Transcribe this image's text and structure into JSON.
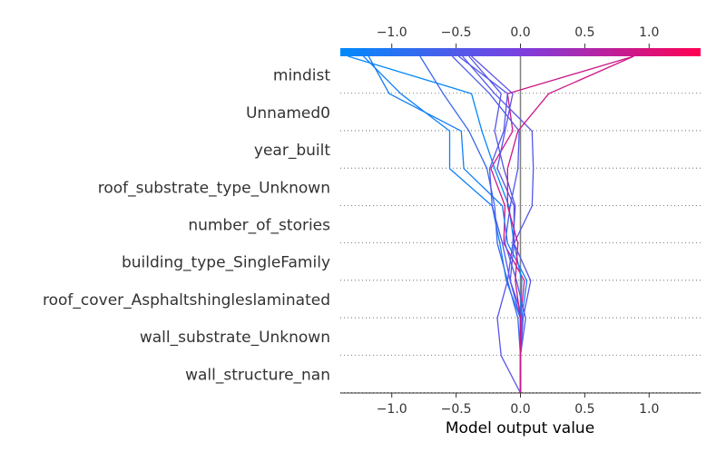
{
  "chart_data": {
    "type": "line",
    "xlabel": "Model output value",
    "ylabel": "",
    "xlim": [
      -1.4,
      1.4
    ],
    "base_value": 0.0,
    "x_ticks": [
      "−1.0",
      "−0.5",
      "0.0",
      "0.5",
      "1.0"
    ],
    "x_tick_values": [
      -1.0,
      -0.5,
      0.0,
      0.5,
      1.0
    ],
    "features": [
      "mindist",
      "Unnamed0",
      "year_built",
      "roof_substrate_type_Unknown",
      "number_of_stories",
      "building_type_SingleFamily",
      "roof_cover_Asphaltshingleslaminated",
      "wall_substrate_Unknown",
      "wall_structure_nan"
    ],
    "colormap": [
      "#008afb",
      "#7c3fe0",
      "#ff0052"
    ],
    "series": [
      {
        "values": [
          0.0,
          0.0,
          0.0,
          0.03,
          -0.13,
          -0.12,
          -0.23,
          -0.06,
          -0.1,
          0.88
        ]
      },
      {
        "values": [
          0.0,
          0.0,
          0.0,
          0.01,
          -0.05,
          -0.09,
          -0.2,
          -0.3,
          -0.38,
          -1.34
        ]
      },
      {
        "values": [
          0.0,
          0.0,
          0.01,
          0.05,
          -0.1,
          -0.14,
          -0.44,
          -0.46,
          -1.02,
          -1.18
        ]
      },
      {
        "values": [
          0.0,
          0.0,
          0.0,
          -0.11,
          -0.16,
          -0.22,
          -0.55,
          -0.55,
          -0.93,
          -1.22
        ]
      },
      {
        "values": [
          0.0,
          0.0,
          -0.02,
          -0.1,
          -0.18,
          -0.2,
          -0.26,
          -0.4,
          -0.6,
          -0.78
        ]
      },
      {
        "values": [
          0.0,
          0.0,
          0.02,
          -0.08,
          -0.14,
          -0.22,
          -0.24,
          -0.13,
          -0.1,
          -0.48
        ]
      },
      {
        "values": [
          0.0,
          -0.15,
          -0.18,
          -0.1,
          -0.06,
          -0.04,
          -0.13,
          -0.2,
          -0.15,
          -0.4
        ]
      },
      {
        "values": [
          0.0,
          0.0,
          0.0,
          -0.08,
          -0.05,
          0.09,
          0.1,
          0.09,
          -0.2,
          -0.45
        ]
      },
      {
        "values": [
          0.0,
          0.0,
          0.04,
          -0.03,
          -0.12,
          -0.08,
          -0.02,
          -0.01,
          -0.24,
          -0.53
        ]
      },
      {
        "values": [
          0.0,
          0.0,
          0.02,
          0.08,
          -0.05,
          -0.05,
          -0.18,
          -0.12,
          -0.06,
          -0.38
        ]
      },
      {
        "values": [
          0.0,
          0.0,
          0.0,
          -0.04,
          -0.02,
          -0.1,
          -0.1,
          -0.02,
          0.22,
          0.88
        ]
      }
    ]
  }
}
